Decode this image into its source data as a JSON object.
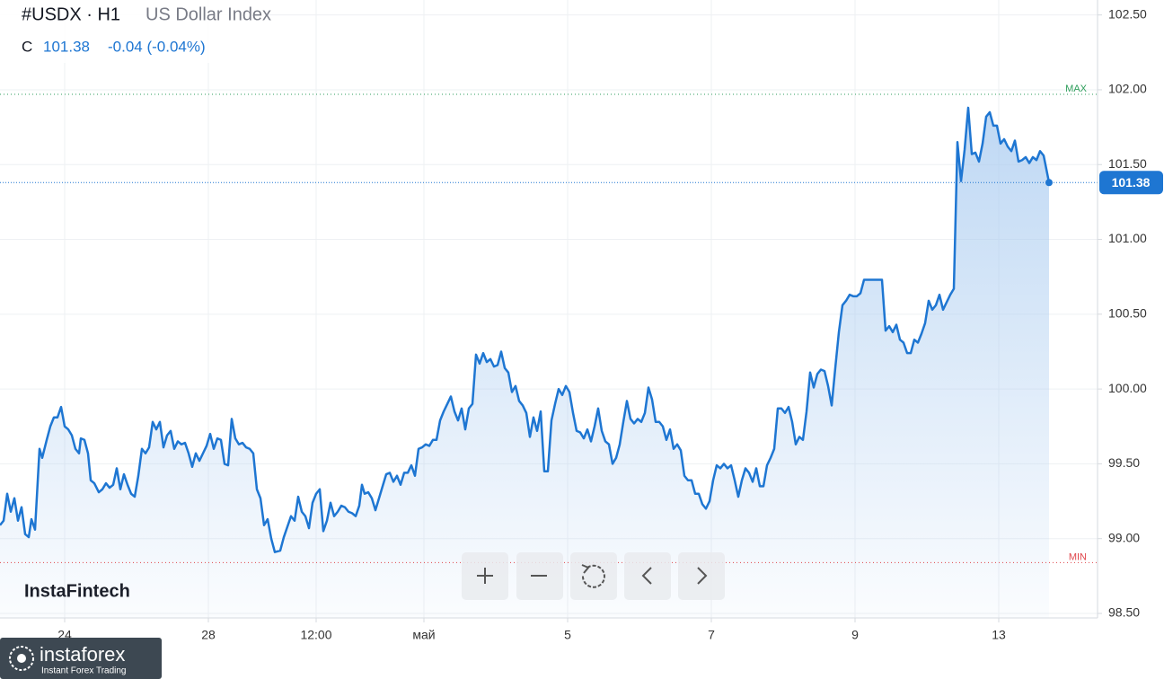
{
  "chart_data": {
    "type": "line",
    "title": "#USDX · H1",
    "subtitle": "US Dollar Index",
    "header": {
      "close_label": "C",
      "close": 101.38,
      "change": "-0.04 (-0.04%)"
    },
    "color": "#1e76d2",
    "area_color": "#a9cbf0",
    "grid": true,
    "ylim": [
      98.47,
      102.6
    ],
    "yticks": [
      {
        "value": 98.5,
        "label": "98.50"
      },
      {
        "value": 99,
        "label": "99.00"
      },
      {
        "value": 99.5,
        "label": "99.50"
      },
      {
        "value": 100,
        "label": "100.00"
      },
      {
        "value": 100.5,
        "label": "100.50"
      },
      {
        "value": 101,
        "label": "101.00"
      },
      {
        "value": 101.5,
        "label": "101.50"
      },
      {
        "value": 102,
        "label": "102.00"
      },
      {
        "value": 102.5,
        "label": "102.50"
      }
    ],
    "xlim": [
      0,
      305.5
    ],
    "xticks": [
      {
        "value": 18,
        "label": "24"
      },
      {
        "value": 58,
        "label": "28"
      },
      {
        "value": 88,
        "label": "12:00"
      },
      {
        "value": 118,
        "label": "май"
      },
      {
        "value": 158,
        "label": "5"
      },
      {
        "value": 198,
        "label": "7"
      },
      {
        "value": 238,
        "label": "9"
      },
      {
        "value": 278,
        "label": "13"
      }
    ],
    "last_price": 101.38,
    "last_price_color": "#1e76d2",
    "annotations": [
      {
        "label": "MAX",
        "value": 101.97,
        "color": "#2e9e5b"
      },
      {
        "label": "MIN",
        "value": 98.84,
        "color": "#e0464b"
      }
    ],
    "x": [
      0,
      1,
      2,
      3,
      4,
      5,
      6,
      7,
      8,
      8.75,
      9.75,
      11,
      11.75,
      13,
      14,
      15,
      16,
      17,
      18,
      19,
      20,
      21,
      22,
      22.5,
      23.5,
      24.5,
      25.25,
      26.25,
      27.5,
      28.5,
      29.5,
      30.5,
      31.5,
      32.5,
      33.5,
      34.5,
      35.5,
      36.5,
      37.5,
      38.5,
      39.5,
      40.5,
      41.5,
      42.5,
      43.5,
      44.5,
      45.5,
      46.5,
      47.5,
      48.5,
      49.5,
      50.5,
      51.5,
      52.5,
      53.5,
      54.5,
      55.5,
      56.5,
      57.5,
      58.5,
      59.5,
      60.5,
      61.5,
      62.5,
      63.5,
      64.5,
      65.5,
      66.5,
      67.5,
      68.5,
      69.5,
      70.5,
      71.5,
      72.5,
      73.5,
      74.5,
      75.5,
      76.5,
      78,
      79,
      80,
      81,
      82,
      83,
      84,
      85,
      86,
      87,
      88,
      89,
      90,
      91,
      92,
      93,
      94,
      95,
      96,
      97,
      98,
      99,
      100,
      100.75,
      101.5,
      102.5,
      103.5,
      104.5,
      105.5,
      106.5,
      107.5,
      108.5,
      109.5,
      110.5,
      111.5,
      112.5,
      113.5,
      114.5,
      115.5,
      116.5,
      117.5,
      118.5,
      119.5,
      120.5,
      121.5,
      122.5,
      123.5,
      124.5,
      125.5,
      126.5,
      127.5,
      128.5,
      129.5,
      130.5,
      131.5,
      132.5,
      133.5,
      134.5,
      135.5,
      136.5,
      137.5,
      138.5,
      139.5,
      140.5,
      141.5,
      142.5,
      143.5,
      144.5,
      145.5,
      146.5,
      147.5,
      148.5,
      149.5,
      150.5,
      151.5,
      152.5,
      153.5,
      154.5,
      155.5,
      156.5,
      157.5,
      158.5,
      159.5,
      160.5,
      161.5,
      162.5,
      163.5,
      164.5,
      165.5,
      166.5,
      167.5,
      168.5,
      169.5,
      170.5,
      171.5,
      172.5,
      173.5,
      174.5,
      175.5,
      176.5,
      177.5,
      178.5,
      179.5,
      180.5,
      181.5,
      182.5,
      183.5,
      184.5,
      185.5,
      186.5,
      187.5,
      188.5,
      189.5,
      190.5,
      191.5,
      192.5,
      193.5,
      194.5,
      195.5,
      196.5,
      197.5,
      198.5,
      199.5,
      200.5,
      201.5,
      202.5,
      203.5,
      204.5,
      205.5,
      206.5,
      207.5,
      208.5,
      209.5,
      210.5,
      211.5,
      212.5,
      213.5,
      214.5,
      215.5,
      216.5,
      217.5,
      218.5,
      219.5,
      220.5,
      221.5,
      222.5,
      223.5,
      224.5,
      225.5,
      226.5,
      227.5,
      228.5,
      229.5,
      230.5,
      231.5,
      232.5,
      233.5,
      234.5,
      235.5,
      236.5,
      237.5,
      238.5,
      239.5,
      240.5,
      245.5,
      246.5,
      247.5,
      248.5,
      249.5,
      250.5,
      251.5,
      252.5,
      253.5,
      254.5,
      255.5,
      256.5,
      257.5,
      258.5,
      259.5,
      260.5,
      261.5,
      262.5,
      263.5,
      264.5,
      265.5,
      266.5,
      267.5,
      268.5,
      269.5,
      270.5,
      271.5,
      272.5,
      273.5,
      274.5,
      275.5,
      276.5,
      277.5,
      278.5,
      279.5,
      280.5,
      281.5,
      282.5,
      283.5,
      284.5,
      285.5,
      286.5,
      287.5,
      288.5,
      289.5,
      290.5,
      292
    ],
    "values": [
      99.09,
      99.12,
      99.3,
      99.18,
      99.27,
      99.12,
      99.21,
      99.03,
      99.01,
      99.13,
      99.06,
      99.6,
      99.54,
      99.66,
      99.75,
      99.81,
      99.81,
      99.88,
      99.75,
      99.73,
      99.69,
      99.6,
      99.57,
      99.67,
      99.66,
      99.57,
      99.39,
      99.37,
      99.31,
      99.33,
      99.37,
      99.34,
      99.36,
      99.47,
      99.33,
      99.43,
      99.36,
      99.3,
      99.28,
      99.42,
      99.6,
      99.57,
      99.61,
      99.78,
      99.73,
      99.78,
      99.61,
      99.69,
      99.72,
      99.6,
      99.65,
      99.63,
      99.64,
      99.57,
      99.48,
      99.57,
      99.52,
      99.57,
      99.62,
      99.7,
      99.6,
      99.67,
      99.66,
      99.5,
      99.49,
      99.8,
      99.67,
      99.63,
      99.64,
      99.61,
      99.6,
      99.57,
      99.33,
      99.27,
      99.09,
      99.13,
      99.0,
      98.91,
      98.92,
      99.01,
      99.08,
      99.15,
      99.12,
      99.28,
      99.18,
      99.15,
      99.07,
      99.24,
      99.3,
      99.33,
      99.05,
      99.12,
      99.24,
      99.15,
      99.18,
      99.22,
      99.21,
      99.18,
      99.17,
      99.15,
      99.22,
      99.36,
      99.3,
      99.31,
      99.27,
      99.19,
      99.27,
      99.35,
      99.43,
      99.44,
      99.38,
      99.42,
      99.36,
      99.44,
      99.44,
      99.49,
      99.42,
      99.6,
      99.61,
      99.63,
      99.62,
      99.66,
      99.66,
      99.79,
      99.85,
      99.9,
      99.95,
      99.85,
      99.79,
      99.87,
      99.73,
      99.87,
      99.9,
      100.23,
      100.17,
      100.24,
      100.18,
      100.2,
      100.15,
      100.16,
      100.25,
      100.14,
      100.11,
      99.98,
      100.02,
      99.92,
      99.89,
      99.84,
      99.68,
      99.81,
      99.72,
      99.85,
      99.45,
      99.45,
      99.79,
      99.9,
      100.0,
      99.96,
      100.02,
      99.98,
      99.84,
      99.72,
      99.71,
      99.67,
      99.73,
      99.65,
      99.75,
      99.87,
      99.72,
      99.65,
      99.63,
      99.5,
      99.54,
      99.63,
      99.78,
      99.92,
      99.8,
      99.77,
      99.8,
      99.78,
      99.84,
      100.01,
      99.93,
      99.78,
      99.78,
      99.75,
      99.66,
      99.73,
      99.6,
      99.63,
      99.59,
      99.42,
      99.39,
      99.39,
      99.3,
      99.3,
      99.23,
      99.2,
      99.25,
      99.39,
      99.49,
      99.47,
      99.5,
      99.47,
      99.49,
      99.39,
      99.28,
      99.39,
      99.47,
      99.44,
      99.38,
      99.47,
      99.35,
      99.35,
      99.49,
      99.54,
      99.6,
      99.87,
      99.87,
      99.84,
      99.88,
      99.78,
      99.63,
      99.68,
      99.66,
      99.85,
      100.11,
      100.01,
      100.1,
      100.13,
      100.12,
      100.02,
      99.89,
      100.14,
      100.38,
      100.56,
      100.59,
      100.63,
      100.62,
      100.62,
      100.64,
      100.73,
      100.73,
      100.39,
      100.42,
      100.38,
      100.43,
      100.33,
      100.31,
      100.24,
      100.24,
      100.33,
      100.31,
      100.37,
      100.44,
      100.59,
      100.53,
      100.56,
      100.63,
      100.53,
      100.58,
      100.63,
      100.67,
      101.65,
      101.39,
      101.6,
      101.88,
      101.57,
      101.58,
      101.52,
      101.64,
      101.82,
      101.85,
      101.76,
      101.76,
      101.64,
      101.67,
      101.62,
      101.59,
      101.66,
      101.52,
      101.53,
      101.55,
      101.51,
      101.55,
      101.53,
      101.59,
      101.56,
      101.38
    ]
  },
  "branding": {
    "watermark": "InstaFintech",
    "logo": "instaforex",
    "tagline": "Instant Forex Trading"
  }
}
